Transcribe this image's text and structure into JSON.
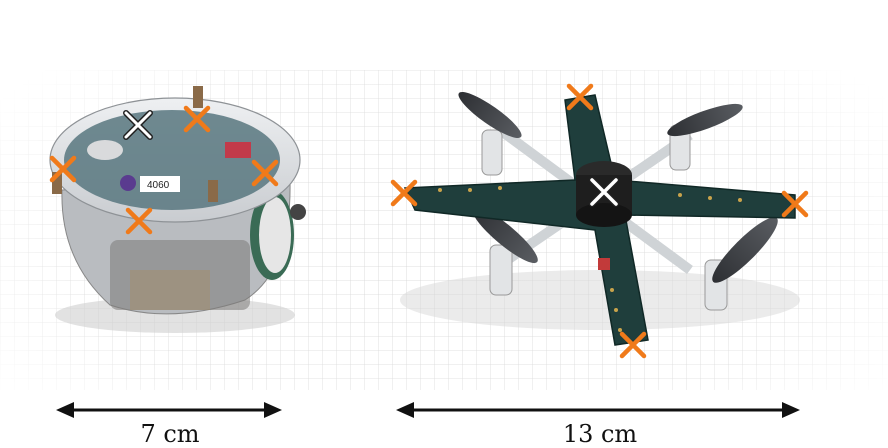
{
  "legend": {
    "microphone": {
      "label": "microphone",
      "marker_color": "#f07a1a"
    },
    "buzzer": {
      "label": "buzzer",
      "marker_color": "#ffffff",
      "outline": "#222222"
    }
  },
  "dimensions": {
    "left": {
      "label": "7 cm"
    },
    "right": {
      "label": "13 cm"
    }
  },
  "robots": {
    "left": {
      "name": "e-puck robot",
      "board_label": "4060"
    },
    "right": {
      "name": "quadcopter"
    }
  }
}
